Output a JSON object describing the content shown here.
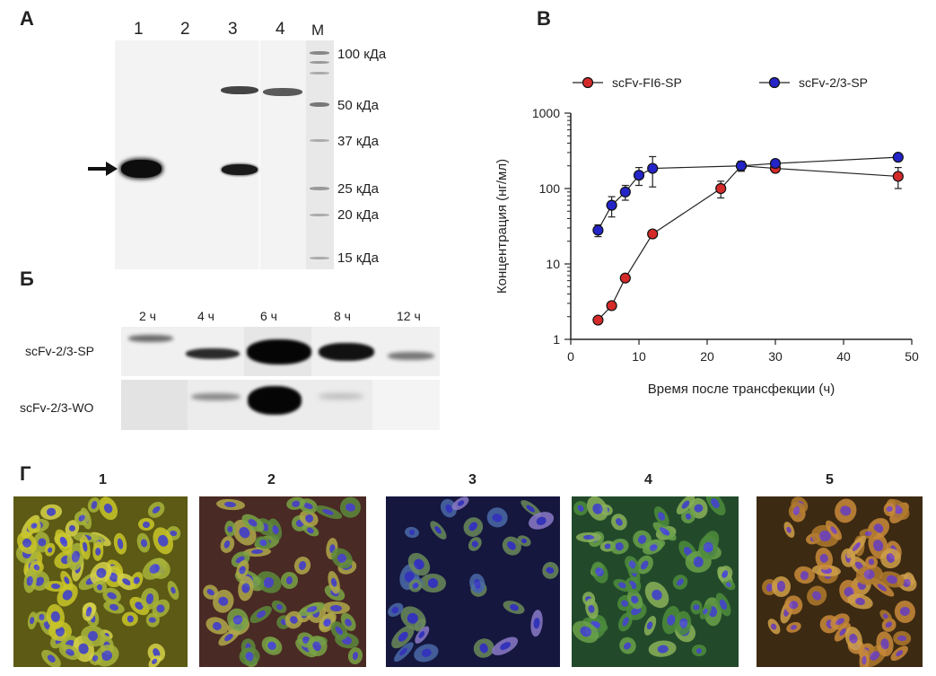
{
  "panels": {
    "a": "А",
    "b": "Б",
    "v": "В",
    "g": "Г"
  },
  "gel_a": {
    "lanes": [
      "1",
      "2",
      "3",
      "4",
      "М"
    ],
    "markers": [
      "100 кДа",
      "50 кДа",
      "37 кДа",
      "25 кДа",
      "20 кДа",
      "15 кДа"
    ]
  },
  "blot_b": {
    "times": [
      "2 ч",
      "4 ч",
      "6 ч",
      "8 ч",
      "12 ч"
    ],
    "rows": [
      "scFv-2/3-SP",
      "scFv-2/3-WO"
    ]
  },
  "chart_data": {
    "type": "line",
    "xlabel": "Время после трансфекции (ч)",
    "ylabel": "Концентрация (нг/мл)",
    "xlim": [
      0,
      50
    ],
    "ylim": [
      1,
      1000
    ],
    "yscale": "log",
    "xticks": [
      "0",
      "10",
      "20",
      "30",
      "40",
      "50"
    ],
    "yticks": [
      "1",
      "10",
      "100",
      "1000"
    ],
    "legend_position": "top",
    "series": [
      {
        "name": "scFv-FI6-SP",
        "color": "#d42a2a",
        "x": [
          4,
          6,
          8,
          12,
          22,
          25,
          30,
          48
        ],
        "y": [
          1.8,
          2.8,
          6.5,
          25,
          100,
          200,
          185,
          145
        ],
        "err": [
          0,
          0,
          0,
          0,
          25,
          30,
          0,
          45
        ]
      },
      {
        "name": "scFv-2/3-SP",
        "color": "#2424c8",
        "x": [
          4,
          6,
          8,
          10,
          12,
          25,
          30,
          48
        ],
        "y": [
          28,
          60,
          90,
          150,
          185,
          200,
          215,
          260
        ],
        "err": [
          5,
          18,
          20,
          40,
          80,
          30,
          0,
          0
        ]
      }
    ]
  },
  "micro_g": {
    "labels": [
      "1",
      "2",
      "3",
      "4",
      "5"
    ]
  }
}
